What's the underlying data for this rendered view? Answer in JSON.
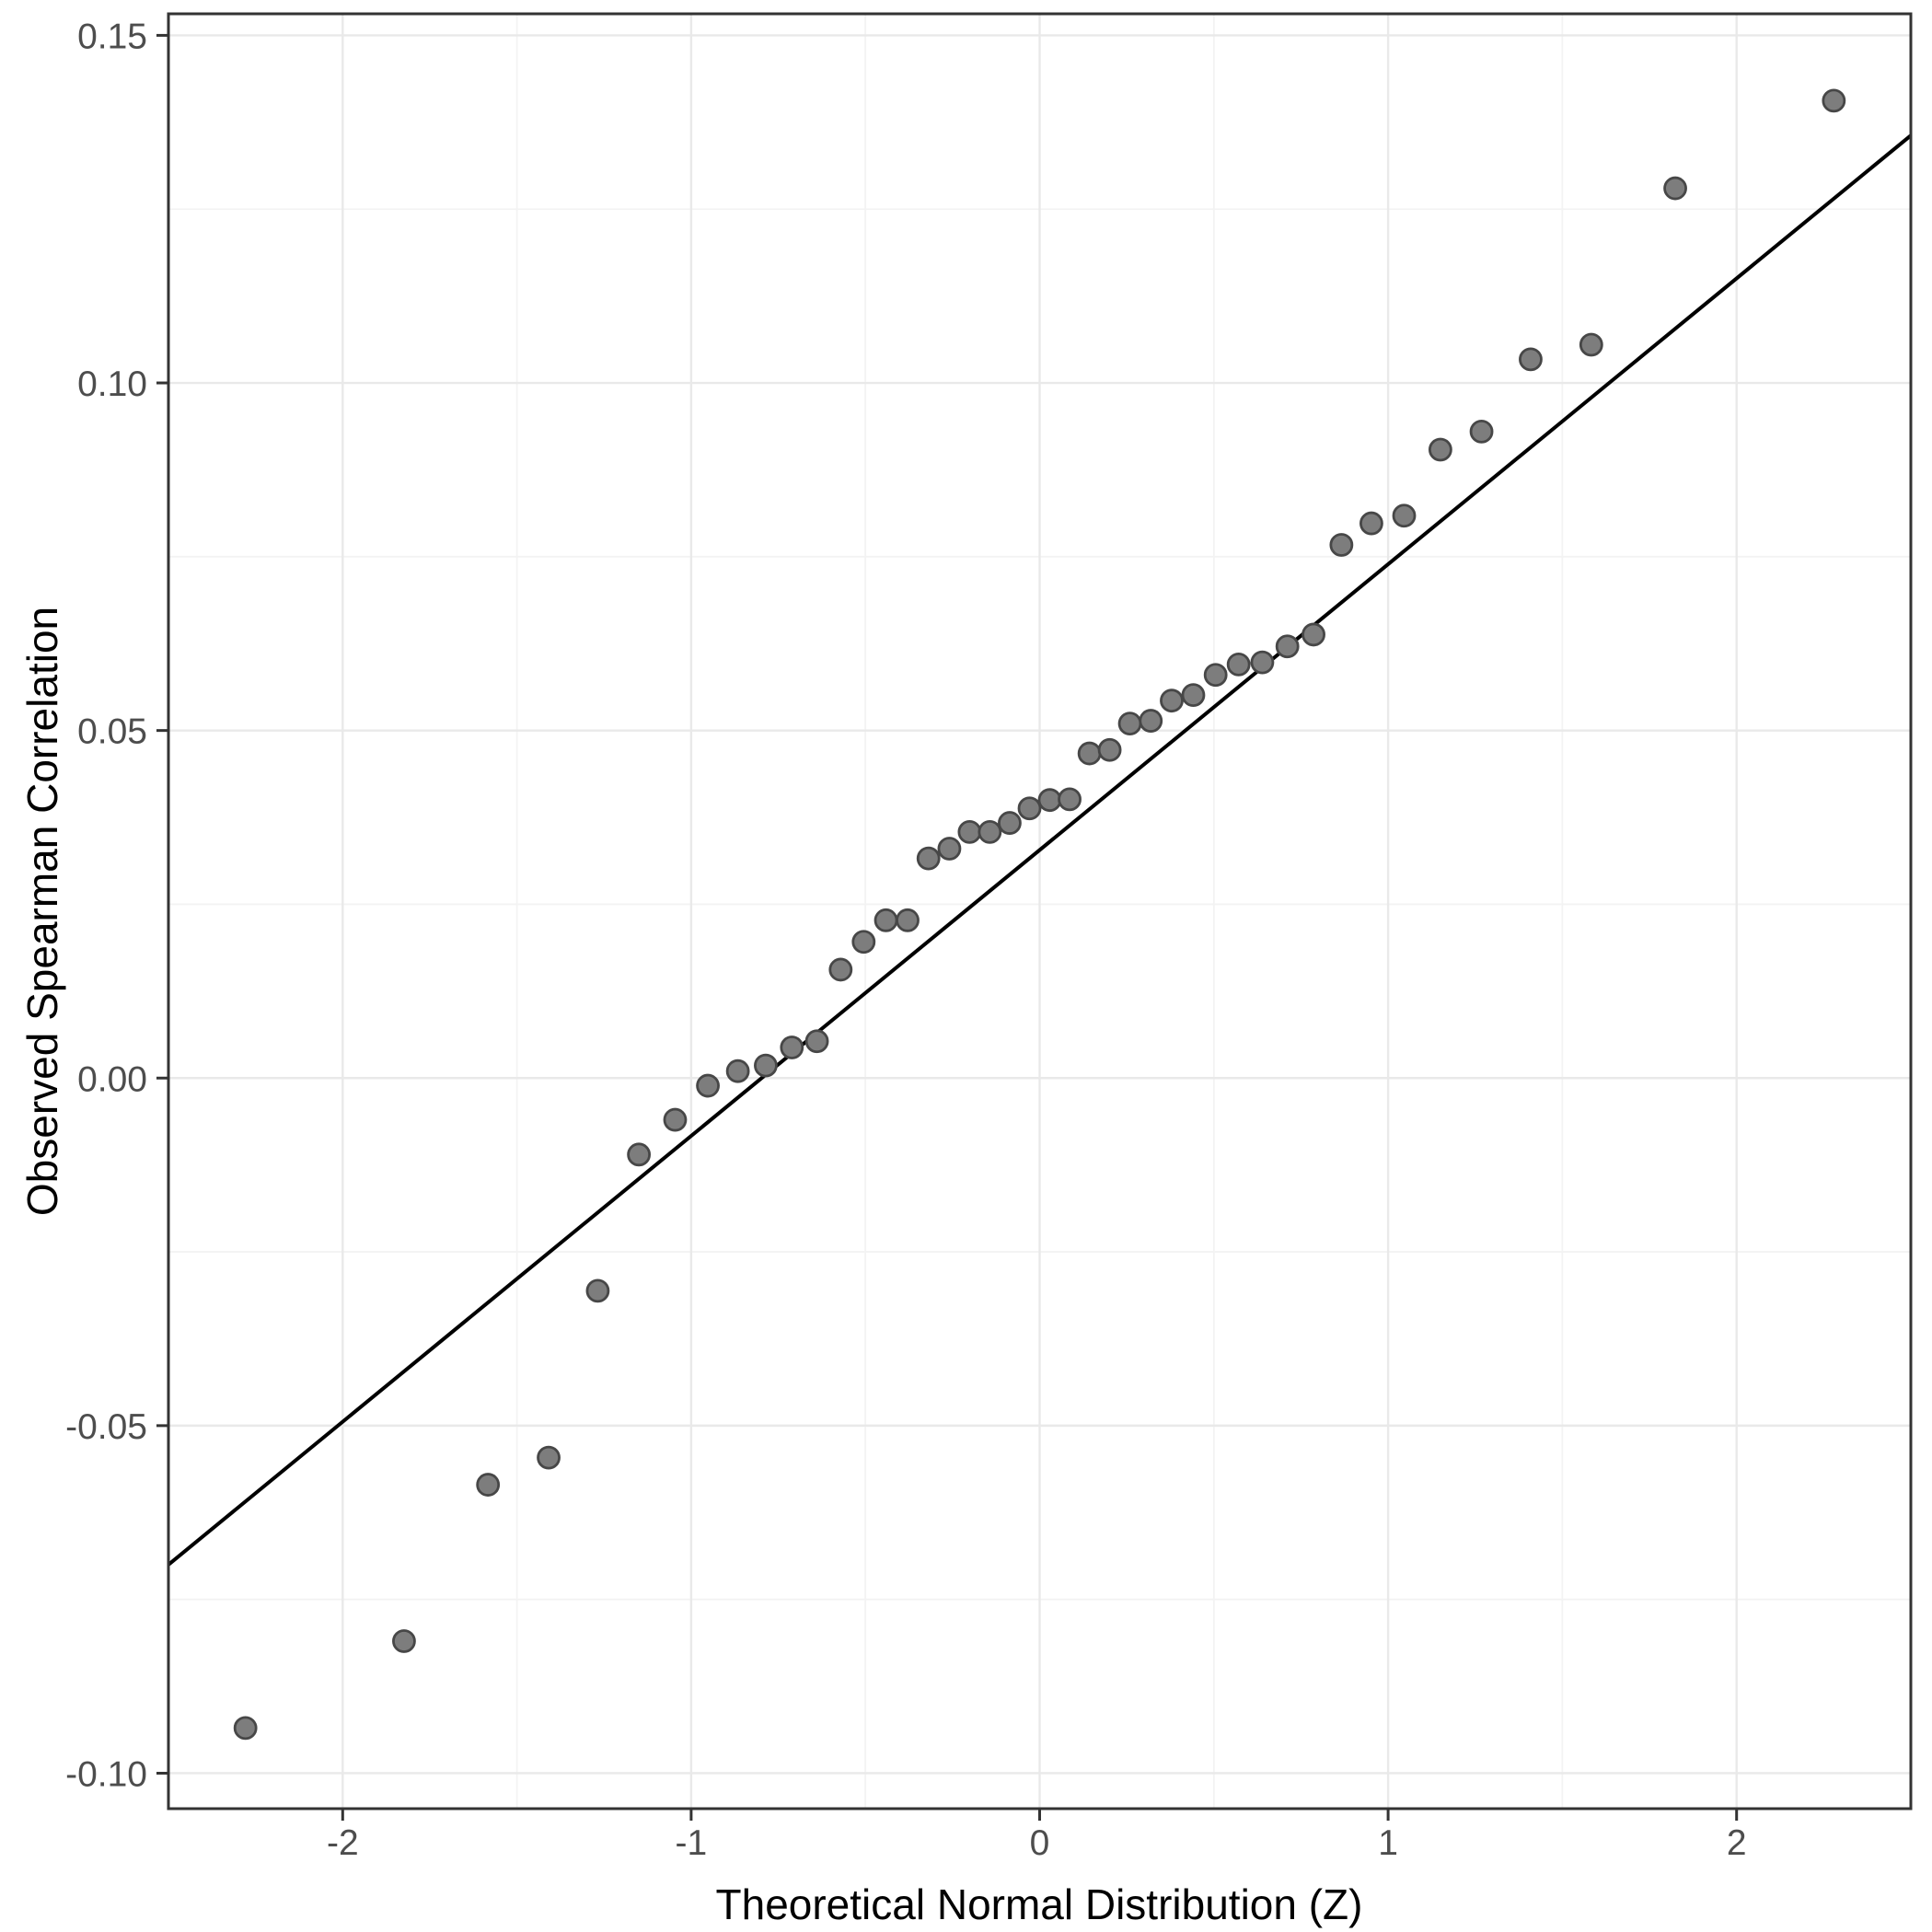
{
  "chart_data": {
    "type": "scatter",
    "title": "",
    "xlabel": "Theoretical Normal Distribution (Z)",
    "ylabel": "Observed Spearman Correlation",
    "xlim": [
      -2.5,
      2.5
    ],
    "ylim": [
      -0.1051,
      0.1531
    ],
    "grid": "major+minor",
    "legend": "none",
    "x_ticks": {
      "values": [
        -2,
        -1,
        0,
        1,
        2
      ],
      "labels": [
        "-2",
        "-1",
        "0",
        "1",
        "2"
      ],
      "minor": [
        -1.5,
        -0.5,
        0.5,
        1.5
      ]
    },
    "y_ticks": {
      "values": [
        -0.1,
        -0.05,
        0.0,
        0.05,
        0.1,
        0.15
      ],
      "labels": [
        "-0.10",
        "-0.05",
        "0.00",
        "0.05",
        "0.10",
        "0.15"
      ],
      "minor": [
        -0.075,
        -0.025,
        0.025,
        0.075,
        0.125
      ]
    },
    "reference_line": {
      "x1": -2.5,
      "y1": -0.07,
      "x2": 2.5,
      "y2": 0.1356
    },
    "series": [
      {
        "name": "qq-points",
        "points": [
          [
            -2.279,
            -0.0935
          ],
          [
            -1.824,
            -0.081
          ],
          [
            -1.583,
            -0.0585
          ],
          [
            -1.409,
            -0.0546
          ],
          [
            -1.268,
            -0.0306
          ],
          [
            -1.15,
            -0.011
          ],
          [
            -1.046,
            -0.006
          ],
          [
            -0.952,
            -0.0011
          ],
          [
            -0.866,
            0.001
          ],
          [
            -0.786,
            0.0018
          ],
          [
            -0.711,
            0.0044
          ],
          [
            -0.639,
            0.0053
          ],
          [
            -0.571,
            0.0156
          ],
          [
            -0.505,
            0.0196
          ],
          [
            -0.441,
            0.0227
          ],
          [
            -0.379,
            0.0227
          ],
          [
            -0.319,
            0.0316
          ],
          [
            -0.259,
            0.033
          ],
          [
            -0.201,
            0.0354
          ],
          [
            -0.143,
            0.0354
          ],
          [
            -0.086,
            0.0367
          ],
          [
            -0.029,
            0.0388
          ],
          [
            0.029,
            0.04
          ],
          [
            0.086,
            0.0401
          ],
          [
            0.143,
            0.0467
          ],
          [
            0.201,
            0.0472
          ],
          [
            0.259,
            0.051
          ],
          [
            0.319,
            0.0514
          ],
          [
            0.379,
            0.0543
          ],
          [
            0.441,
            0.0551
          ],
          [
            0.505,
            0.058
          ],
          [
            0.571,
            0.0595
          ],
          [
            0.639,
            0.0598
          ],
          [
            0.711,
            0.0621
          ],
          [
            0.786,
            0.0638
          ],
          [
            0.866,
            0.0767
          ],
          [
            0.952,
            0.0798
          ],
          [
            1.046,
            0.0809
          ],
          [
            1.15,
            0.0904
          ],
          [
            1.268,
            0.093
          ],
          [
            1.409,
            0.1034
          ],
          [
            1.583,
            0.1055
          ],
          [
            1.824,
            0.128
          ],
          [
            2.279,
            0.1406
          ]
        ]
      }
    ]
  },
  "style": {
    "background": "#ffffff",
    "panel_background": "#ffffff",
    "panel_border": "#333333",
    "grid_major": "#e9e9e9",
    "grid_minor": "#f3f3f3",
    "tick_color": "#333333",
    "tick_label_color": "#4d4d4d",
    "axis_title_color": "#000000",
    "point_fill": "#7d7d7d",
    "point_stroke": "#474747",
    "reference_line_color": "#000000"
  }
}
